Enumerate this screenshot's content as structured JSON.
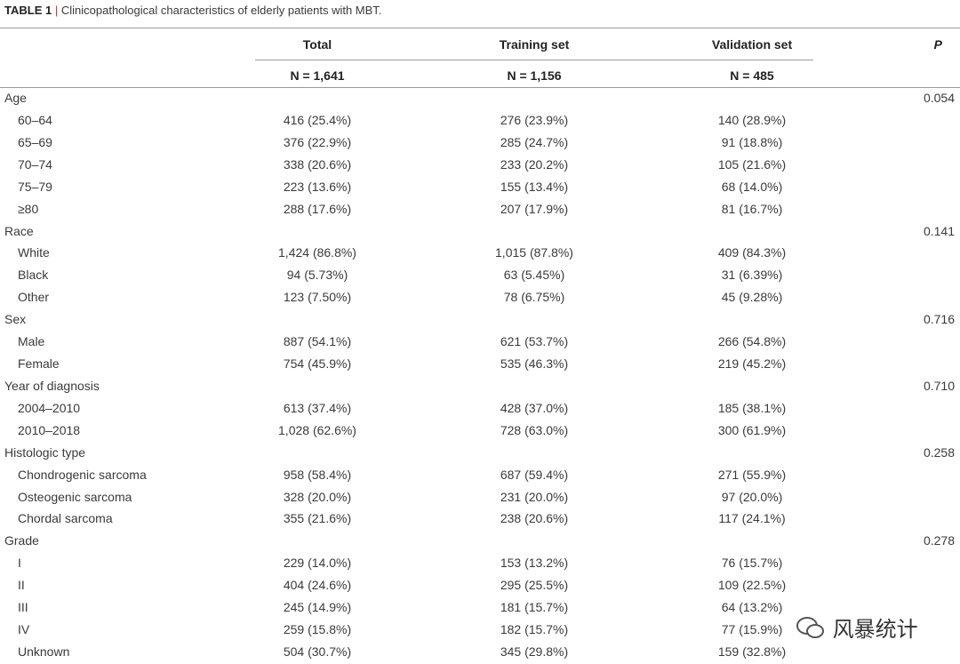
{
  "caption": {
    "label": "TABLE 1",
    "separator": "|",
    "text": "Clinicopathological characteristics of elderly patients with MBT."
  },
  "header": {
    "columns": [
      "Total",
      "Training set",
      "Validation set",
      "P"
    ],
    "counts": [
      "N = 1,641",
      "N = 1,156",
      "N = 485"
    ]
  },
  "groups": [
    {
      "label": "Age",
      "p": "0.054",
      "rows": [
        {
          "label": "60–64",
          "values": [
            "416 (25.4%)",
            "276 (23.9%)",
            "140 (28.9%)"
          ]
        },
        {
          "label": "65–69",
          "values": [
            "376 (22.9%)",
            "285 (24.7%)",
            "91 (18.8%)"
          ]
        },
        {
          "label": "70–74",
          "values": [
            "338 (20.6%)",
            "233 (20.2%)",
            "105 (21.6%)"
          ]
        },
        {
          "label": "75–79",
          "values": [
            "223 (13.6%)",
            "155 (13.4%)",
            "68 (14.0%)"
          ]
        },
        {
          "label": "≥80",
          "values": [
            "288 (17.6%)",
            "207 (17.9%)",
            "81 (16.7%)"
          ]
        }
      ]
    },
    {
      "label": "Race",
      "p": "0.141",
      "rows": [
        {
          "label": "White",
          "values": [
            "1,424 (86.8%)",
            "1,015 (87.8%)",
            "409 (84.3%)"
          ]
        },
        {
          "label": "Black",
          "values": [
            "94 (5.73%)",
            "63 (5.45%)",
            "31 (6.39%)"
          ]
        },
        {
          "label": "Other",
          "values": [
            "123 (7.50%)",
            "78 (6.75%)",
            "45 (9.28%)"
          ]
        }
      ]
    },
    {
      "label": "Sex",
      "p": "0.716",
      "rows": [
        {
          "label": "Male",
          "values": [
            "887 (54.1%)",
            "621 (53.7%)",
            "266 (54.8%)"
          ]
        },
        {
          "label": "Female",
          "values": [
            "754 (45.9%)",
            "535 (46.3%)",
            "219 (45.2%)"
          ]
        }
      ]
    },
    {
      "label": "Year of diagnosis",
      "p": "0.710",
      "rows": [
        {
          "label": "2004–2010",
          "values": [
            "613 (37.4%)",
            "428 (37.0%)",
            "185 (38.1%)"
          ]
        },
        {
          "label": "2010–2018",
          "values": [
            "1,028 (62.6%)",
            "728 (63.0%)",
            "300 (61.9%)"
          ]
        }
      ]
    },
    {
      "label": "Histologic type",
      "p": "0.258",
      "rows": [
        {
          "label": "Chondrogenic sarcoma",
          "values": [
            "958 (58.4%)",
            "687 (59.4%)",
            "271 (55.9%)"
          ]
        },
        {
          "label": "Osteogenic sarcoma",
          "values": [
            "328 (20.0%)",
            "231 (20.0%)",
            "97 (20.0%)"
          ]
        },
        {
          "label": "Chordal sarcoma",
          "values": [
            "355 (21.6%)",
            "238 (20.6%)",
            "117 (24.1%)"
          ]
        }
      ]
    },
    {
      "label": "Grade",
      "p": "0.278",
      "rows": [
        {
          "label": "I",
          "values": [
            "229 (14.0%)",
            "153 (13.2%)",
            "76 (15.7%)"
          ]
        },
        {
          "label": "II",
          "values": [
            "404 (24.6%)",
            "295 (25.5%)",
            "109 (22.5%)"
          ]
        },
        {
          "label": "III",
          "values": [
            "245 (14.9%)",
            "181 (15.7%)",
            "64 (13.2%)"
          ]
        },
        {
          "label": "IV",
          "values": [
            "259 (15.8%)",
            "182 (15.7%)",
            "77 (15.9%)"
          ]
        },
        {
          "label": "Unknown",
          "values": [
            "504 (30.7%)",
            "345 (29.8%)",
            "159 (32.8%)"
          ]
        }
      ]
    }
  ],
  "watermark": "风暴统计"
}
